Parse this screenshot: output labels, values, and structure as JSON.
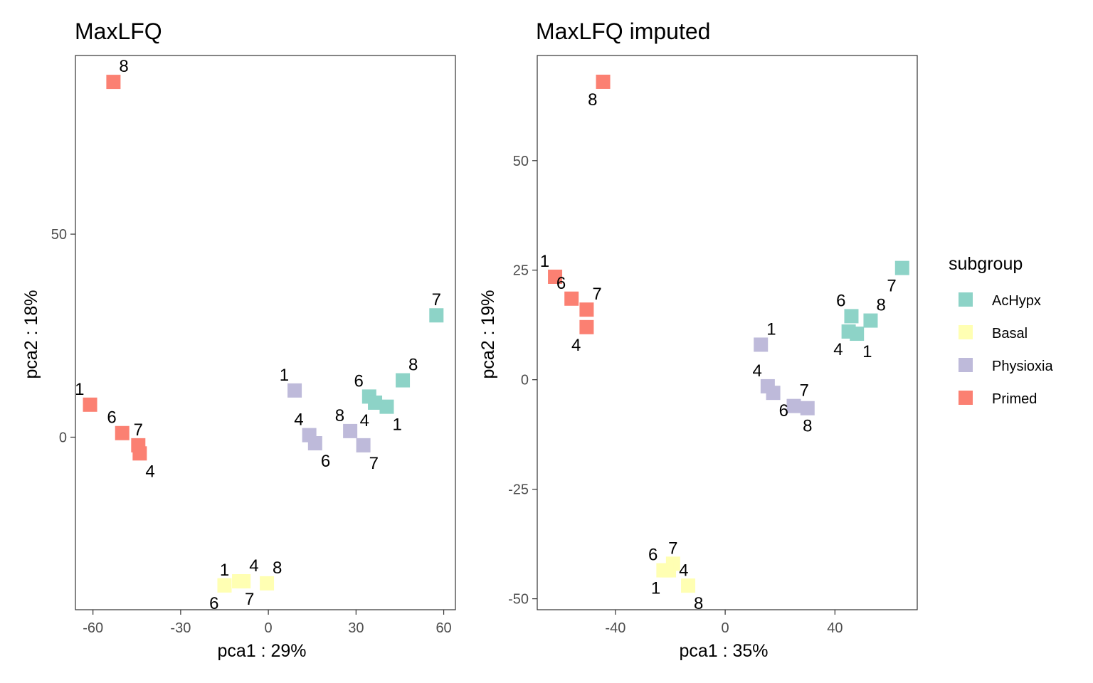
{
  "chart_data": [
    {
      "type": "scatter",
      "title": "MaxLFQ",
      "xlabel": "pca1 : 29%",
      "ylabel": "pca2 : 18%",
      "xlim": [
        -66,
        64
      ],
      "ylim": [
        -42.5,
        94
      ],
      "xticks": [
        -60,
        -30,
        0,
        30,
        60
      ],
      "yticks": [
        0,
        50
      ],
      "grid": false,
      "points": [
        {
          "label": "8",
          "group": "Primed",
          "x": -53,
          "y": 87.5,
          "pos": "above-right"
        },
        {
          "label": "1",
          "group": "Primed",
          "x": -61,
          "y": 8,
          "pos": "above-left"
        },
        {
          "label": "6",
          "group": "Primed",
          "x": -50,
          "y": 1,
          "pos": "above-left"
        },
        {
          "label": "7",
          "group": "Primed",
          "x": -44.5,
          "y": -2,
          "pos": "above"
        },
        {
          "label": "4",
          "group": "Primed",
          "x": -44,
          "y": -4,
          "pos": "below-right"
        },
        {
          "label": "1",
          "group": "Basal",
          "x": -15,
          "y": -36.5,
          "pos": "above"
        },
        {
          "label": "6",
          "group": "Basal",
          "x": -15,
          "y": -36.5,
          "pos": "below-left"
        },
        {
          "label": "4",
          "group": "Basal",
          "x": -8.5,
          "y": -35.5,
          "pos": "above-right"
        },
        {
          "label": "7",
          "group": "Basal",
          "x": -10,
          "y": -35.5,
          "pos": "below-right"
        },
        {
          "label": "8",
          "group": "Basal",
          "x": -0.5,
          "y": -36,
          "pos": "above-right"
        },
        {
          "label": "1",
          "group": "Physioxia",
          "x": 9,
          "y": 11.5,
          "pos": "above-left"
        },
        {
          "label": "4",
          "group": "Physioxia",
          "x": 14,
          "y": 0.5,
          "pos": "above-left"
        },
        {
          "label": "6",
          "group": "Physioxia",
          "x": 16,
          "y": -1.5,
          "pos": "below-right"
        },
        {
          "label": "8",
          "group": "Physioxia",
          "x": 28,
          "y": 1.5,
          "pos": "above-left"
        },
        {
          "label": "7",
          "group": "Physioxia",
          "x": 32.5,
          "y": -2,
          "pos": "below-right"
        },
        {
          "label": "6",
          "group": "AcHypx",
          "x": 34.5,
          "y": 10,
          "pos": "above-left"
        },
        {
          "label": "4",
          "group": "AcHypx",
          "x": 36.5,
          "y": 8.5,
          "pos": "below-left"
        },
        {
          "label": "1",
          "group": "AcHypx",
          "x": 40.5,
          "y": 7.5,
          "pos": "below-right"
        },
        {
          "label": "8",
          "group": "AcHypx",
          "x": 46,
          "y": 14,
          "pos": "above-right"
        },
        {
          "label": "7",
          "group": "AcHypx",
          "x": 57.5,
          "y": 30,
          "pos": "above"
        }
      ]
    },
    {
      "type": "scatter",
      "title": "MaxLFQ imputed",
      "xlabel": "pca1 : 35%",
      "ylabel": "pca2 : 19%",
      "xlim": [
        -68.5,
        70
      ],
      "ylim": [
        -52.5,
        74
      ],
      "xticks": [
        -40,
        0,
        40
      ],
      "yticks": [
        -50,
        -25,
        0,
        25,
        50
      ],
      "grid": false,
      "points": [
        {
          "label": "8",
          "group": "Primed",
          "x": -44.5,
          "y": 68,
          "pos": "below-left"
        },
        {
          "label": "1",
          "group": "Primed",
          "x": -62,
          "y": 23.5,
          "pos": "above-left"
        },
        {
          "label": "6",
          "group": "Primed",
          "x": -56,
          "y": 18.5,
          "pos": "above-left"
        },
        {
          "label": "7",
          "group": "Primed",
          "x": -50.5,
          "y": 16,
          "pos": "above-right"
        },
        {
          "label": "4",
          "group": "Primed",
          "x": -50.5,
          "y": 12,
          "pos": "below-left"
        },
        {
          "label": "7",
          "group": "Basal",
          "x": -19,
          "y": -42,
          "pos": "above"
        },
        {
          "label": "6",
          "group": "Basal",
          "x": -22.5,
          "y": -43.5,
          "pos": "above-left"
        },
        {
          "label": "4",
          "group": "Basal",
          "x": -20.5,
          "y": -43.5,
          "pos": "right"
        },
        {
          "label": "1",
          "group": "Basal",
          "x": -21.5,
          "y": -43.5,
          "pos": "below-left"
        },
        {
          "label": "8",
          "group": "Basal",
          "x": -13.5,
          "y": -47,
          "pos": "below-right"
        },
        {
          "label": "1",
          "group": "Physioxia",
          "x": 13,
          "y": 8,
          "pos": "above-right"
        },
        {
          "label": "4",
          "group": "Physioxia",
          "x": 15.5,
          "y": -1.5,
          "pos": "above-left"
        },
        {
          "label": "6",
          "group": "Physioxia",
          "x": 17.5,
          "y": -3,
          "pos": "below-right"
        },
        {
          "label": "7",
          "group": "Physioxia",
          "x": 25,
          "y": -6,
          "pos": "above-right"
        },
        {
          "label": "8",
          "group": "Physioxia",
          "x": 30,
          "y": -6.5,
          "pos": "below"
        },
        {
          "label": "6",
          "group": "AcHypx",
          "x": 46,
          "y": 14.5,
          "pos": "above-left"
        },
        {
          "label": "4",
          "group": "AcHypx",
          "x": 45,
          "y": 11,
          "pos": "below-left"
        },
        {
          "label": "1",
          "group": "AcHypx",
          "x": 48,
          "y": 10.5,
          "pos": "below-right"
        },
        {
          "label": "8",
          "group": "AcHypx",
          "x": 53,
          "y": 13.5,
          "pos": "above-right"
        },
        {
          "label": "7",
          "group": "AcHypx",
          "x": 64.5,
          "y": 25.5,
          "pos": "below-left"
        }
      ]
    }
  ],
  "legend": {
    "title": "subgroup",
    "placement": "right",
    "items": [
      {
        "name": "AcHypx",
        "color": "#8DD3C7"
      },
      {
        "name": "Basal",
        "color": "#FFFFB3"
      },
      {
        "name": "Physioxia",
        "color": "#BEBADA"
      },
      {
        "name": "Primed",
        "color": "#FB8072"
      }
    ]
  }
}
